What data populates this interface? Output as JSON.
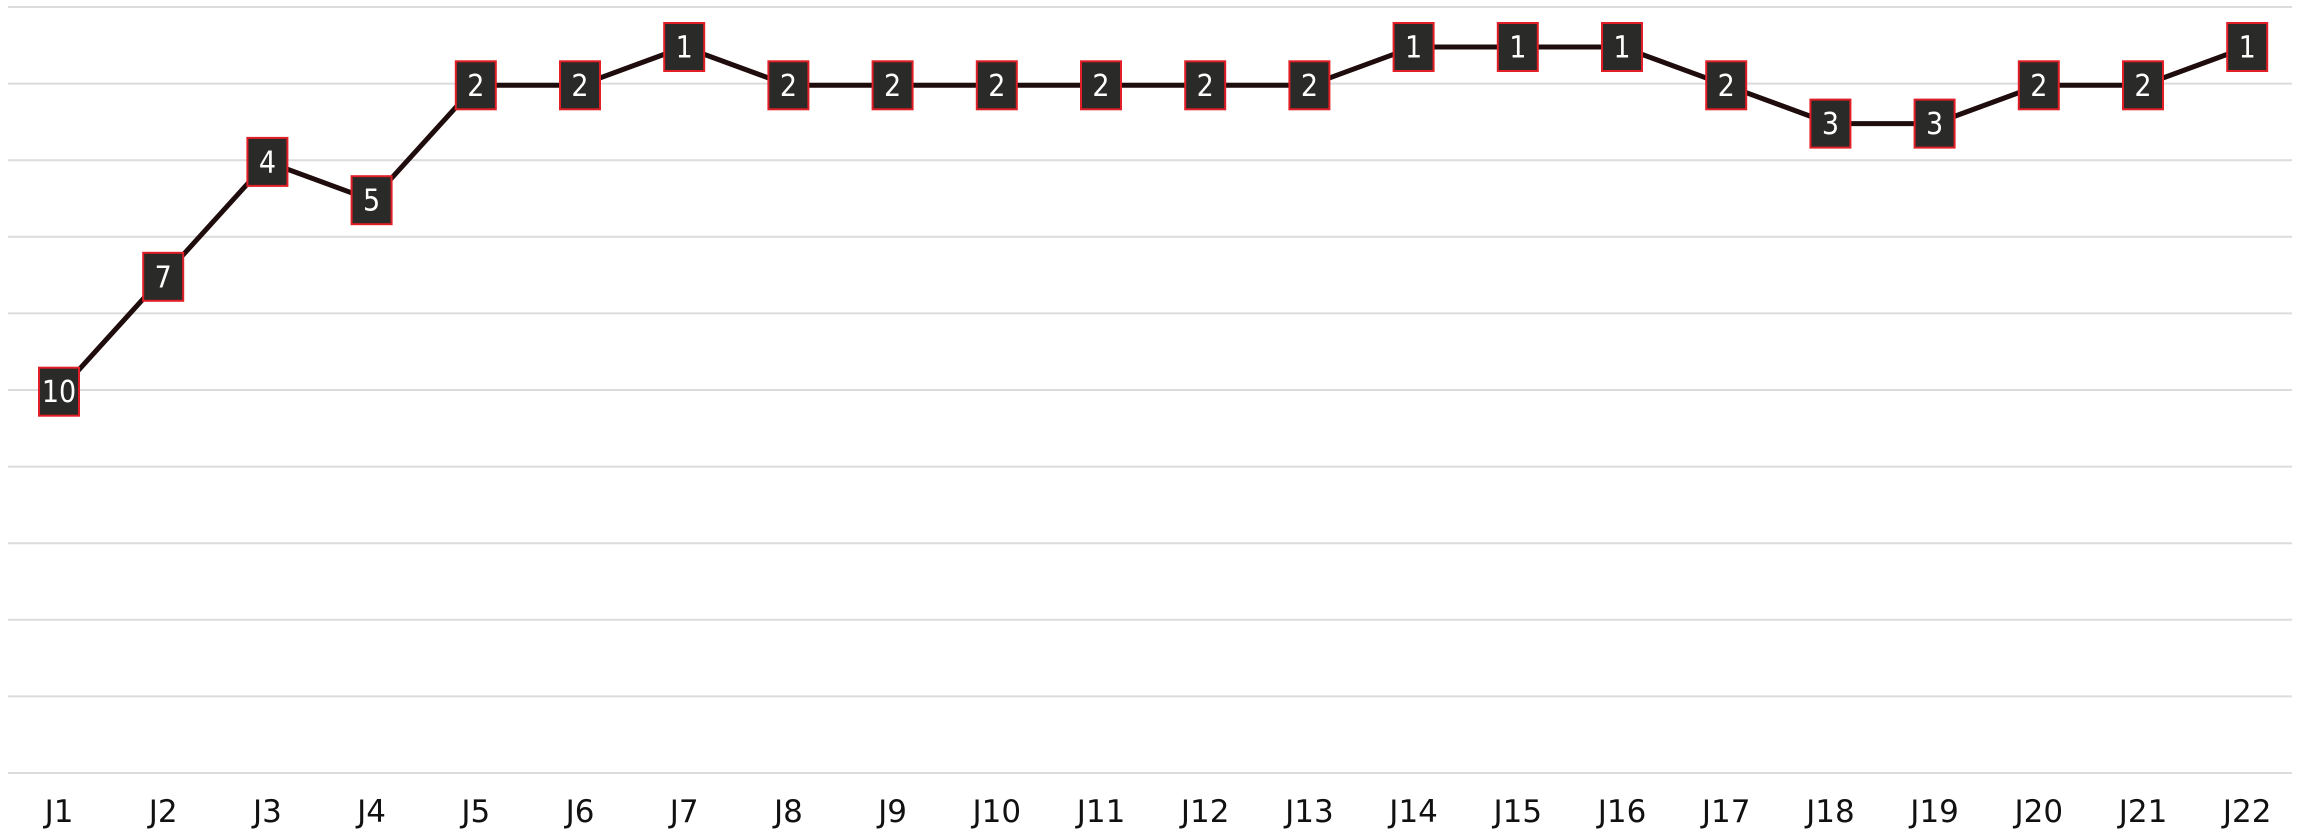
{
  "chart_data": {
    "type": "line",
    "title": "",
    "xlabel": "",
    "ylabel": "",
    "categories": [
      "J1",
      "J2",
      "J3",
      "J4",
      "J5",
      "J6",
      "J7",
      "J8",
      "J9",
      "J10",
      "J11",
      "J12",
      "J13",
      "J14",
      "J15",
      "J16",
      "J17",
      "J18",
      "J19",
      "J20",
      "J21",
      "J22"
    ],
    "series": [
      {
        "values": [
          10,
          7,
          4,
          5,
          2,
          2,
          1,
          2,
          2,
          2,
          2,
          2,
          2,
          1,
          1,
          1,
          2,
          3,
          3,
          2,
          2,
          1
        ]
      }
    ],
    "y_inverted": true,
    "ylim": [
      1,
      20
    ],
    "grid": true,
    "colors": {
      "line": "#1f0c0c",
      "marker_fill": "#2a2a28",
      "marker_border": "#e21f26",
      "marker_text": "#ffffff",
      "grid": "#dcdcdc"
    }
  }
}
